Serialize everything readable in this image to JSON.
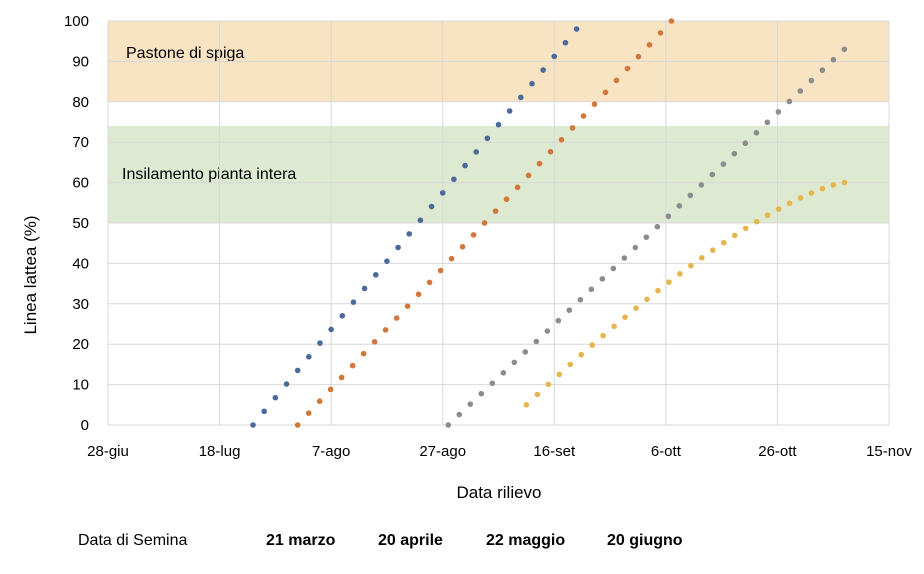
{
  "chart_data": {
    "type": "scatter",
    "xlabel": "Data rilievo",
    "ylabel": "Linea lattea (%)",
    "x_ticks": [
      "28-giu",
      "18-lug",
      "7-ago",
      "27-ago",
      "16-set",
      "6-ott",
      "26-ott",
      "15-nov"
    ],
    "y_ticks": [
      "0",
      "10",
      "20",
      "30",
      "40",
      "50",
      "60",
      "70",
      "80",
      "90",
      "100"
    ],
    "xlim": [
      "2024-06-28",
      "2024-11-15"
    ],
    "ylim": [
      0,
      100
    ],
    "grid": true,
    "bands": [
      {
        "label": "Pastone di spiga",
        "y_range": [
          80,
          100
        ],
        "color": "#f8e3c2"
      },
      {
        "label": "Insilamento pianta intera",
        "y_range": [
          50,
          74
        ],
        "color": "#dde9d0"
      }
    ],
    "legend_title": "Data di Semina",
    "series": [
      {
        "name": "21 marzo",
        "color": "#4a6a9b",
        "start": {
          "x": "2024-07-24",
          "y": 0
        },
        "end": {
          "x": "2024-09-20",
          "y": 98
        }
      },
      {
        "name": "20 aprile",
        "color": "#d2773a",
        "start": {
          "x": "2024-08-01",
          "y": 0
        },
        "end": {
          "x": "2024-10-07",
          "y": 100
        }
      },
      {
        "name": "22 maggio",
        "color": "#8c8c8c",
        "start": {
          "x": "2024-08-28",
          "y": 0
        },
        "end": {
          "x": "2024-11-07",
          "y": 93
        }
      },
      {
        "name": "20 giugno",
        "color": "#e6b54d",
        "start": {
          "x": "2024-09-11",
          "y": 5
        },
        "end": {
          "x": "2024-11-07",
          "y": 60
        }
      }
    ]
  }
}
